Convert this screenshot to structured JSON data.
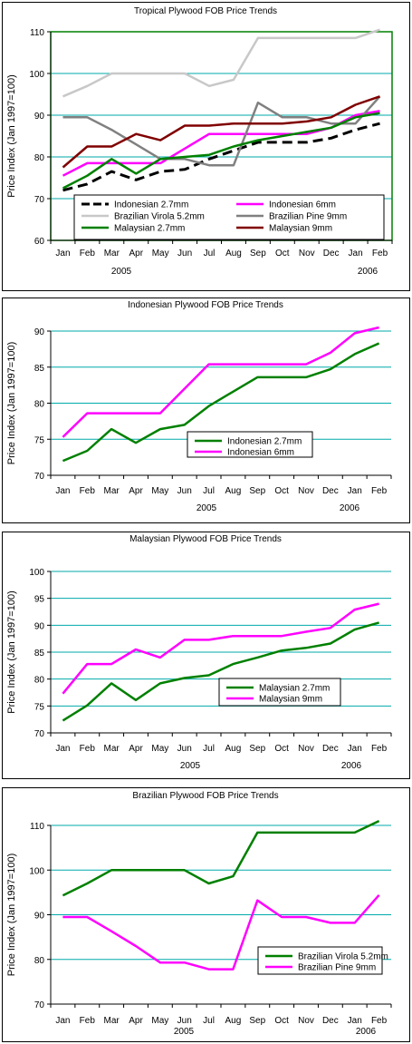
{
  "chart_data": [
    {
      "type": "line",
      "title": "Tropical Plywood FOB Price Trends",
      "ylabel": "Price Index (Jan 1997=100)",
      "categories": [
        "Jan",
        "Feb",
        "Mar",
        "Apr",
        "May",
        "Jun",
        "Jul",
        "Aug",
        "Sep",
        "Oct",
        "Nov",
        "Dec",
        "Jan",
        "Feb"
      ],
      "year_labels": [
        "2005",
        "2006"
      ],
      "ylim": [
        60,
        110
      ],
      "yticks": [
        60,
        70,
        80,
        90,
        100,
        110
      ],
      "grid": true,
      "legend": "bottom-inside",
      "series": [
        {
          "name": "Indonesian 2.7mm",
          "color": "#000000",
          "dash": "long",
          "values": [
            72,
            73.5,
            76.5,
            74.5,
            76.5,
            77,
            79.5,
            81.5,
            83.5,
            83.5,
            83.5,
            84.5,
            86.5,
            88
          ]
        },
        {
          "name": "Indonesian 6mm",
          "color": "#ff00ff",
          "values": [
            75.5,
            78.5,
            78.5,
            78.5,
            78.5,
            82,
            85.5,
            85.5,
            85.5,
            85.5,
            85.5,
            87,
            90,
            91
          ]
        },
        {
          "name": "Brazilian Virola 5.2mm",
          "color": "#c8c8c8",
          "values": [
            94.5,
            97,
            100,
            100,
            100,
            100,
            97,
            98.5,
            108.5,
            108.5,
            108.5,
            108.5,
            108.5,
            110.5
          ]
        },
        {
          "name": "Brazilian Pine 9mm",
          "color": "#808080",
          "values": [
            89.5,
            89.5,
            86.5,
            83,
            79.5,
            79.5,
            78,
            78,
            93,
            89.5,
            89.5,
            88,
            88,
            94.5
          ]
        },
        {
          "name": "Malaysian 2.7mm",
          "color": "#008000",
          "values": [
            72.5,
            75.5,
            79.5,
            76,
            79.5,
            80,
            80.5,
            82.5,
            84,
            85,
            86,
            87,
            89.5,
            90.5
          ]
        },
        {
          "name": "Malaysian 9mm",
          "color": "#800000",
          "values": [
            77.5,
            82.5,
            82.5,
            85.5,
            84,
            87.5,
            87.5,
            88,
            88,
            88,
            88.5,
            89.5,
            92.5,
            94.5
          ]
        }
      ]
    },
    {
      "type": "line",
      "title": "Indonesian Plywood FOB Price Trends",
      "ylabel": "Price Index (Jan 1997=100)",
      "categories": [
        "Jan",
        "Feb",
        "Mar",
        "Apr",
        "May",
        "Jun",
        "Jul",
        "Aug",
        "Sep",
        "Oct",
        "Nov",
        "Dec",
        "Jan",
        "Feb"
      ],
      "year_labels": [
        "2005",
        "2006"
      ],
      "ylim": [
        70,
        90
      ],
      "yticks": [
        70,
        75,
        80,
        85,
        90
      ],
      "grid": true,
      "legend": "bottom-center",
      "series": [
        {
          "name": "Indonesian 2.7mm",
          "color": "#008000",
          "values": [
            72,
            73.4,
            76.4,
            74.5,
            76.4,
            77,
            79.6,
            81.6,
            83.6,
            83.6,
            83.6,
            84.7,
            86.8,
            88.3
          ]
        },
        {
          "name": "Indonesian 6mm",
          "color": "#ff00ff",
          "values": [
            75.3,
            78.6,
            78.6,
            78.6,
            78.6,
            82,
            85.4,
            85.4,
            85.4,
            85.4,
            85.4,
            87,
            89.7,
            90.5
          ]
        }
      ]
    },
    {
      "type": "line",
      "title": "Malaysian Plywood FOB Price Trends",
      "ylabel": "Price Index (Jan 1997=100)",
      "categories": [
        "Jan",
        "Feb",
        "Mar",
        "Apr",
        "May",
        "Jun",
        "Jul",
        "Aug",
        "Sep",
        "Oct",
        "Nov",
        "Dec",
        "Jan",
        "Feb"
      ],
      "year_labels": [
        "2005",
        "2006"
      ],
      "ylim": [
        70,
        100
      ],
      "yticks": [
        70,
        75,
        80,
        85,
        90,
        95,
        100
      ],
      "grid": true,
      "legend": "bottom-center",
      "series": [
        {
          "name": "Malaysian 2.7mm",
          "color": "#008000",
          "values": [
            72.3,
            75.1,
            79.2,
            76.1,
            79.2,
            80.2,
            80.7,
            82.8,
            84,
            85.3,
            85.8,
            86.6,
            89.2,
            90.5
          ]
        },
        {
          "name": "Malaysian 9mm",
          "color": "#ff00ff",
          "values": [
            77.3,
            82.8,
            82.8,
            85.5,
            84,
            87.3,
            87.3,
            88,
            88,
            88,
            88.8,
            89.5,
            92.9,
            94
          ]
        }
      ]
    },
    {
      "type": "line",
      "title": "Brazilian Plywood FOB Price Trends",
      "ylabel": "Price Index (Jan 1997=100)",
      "categories": [
        "Jan",
        "Feb",
        "Mar",
        "Apr",
        "May",
        "Jun",
        "Jul",
        "Aug",
        "Sep",
        "Oct",
        "Nov",
        "Dec",
        "Jan",
        "Feb"
      ],
      "year_labels": [
        "2005",
        "2006"
      ],
      "ylim": [
        70,
        110
      ],
      "yticks": [
        70,
        80,
        90,
        100,
        110
      ],
      "grid": true,
      "legend": "bottom-right",
      "series": [
        {
          "name": "Brazilian Virola 5.2mm",
          "color": "#008000",
          "values": [
            94.3,
            97,
            100,
            100,
            100,
            100,
            97,
            98.6,
            108.4,
            108.4,
            108.4,
            108.4,
            108.4,
            111
          ]
        },
        {
          "name": "Brazilian Pine 9mm",
          "color": "#ff00ff",
          "values": [
            89.5,
            89.5,
            86.3,
            83,
            79.3,
            79.3,
            77.8,
            77.8,
            93.2,
            89.5,
            89.5,
            88.2,
            88.2,
            94.4
          ]
        }
      ]
    }
  ]
}
